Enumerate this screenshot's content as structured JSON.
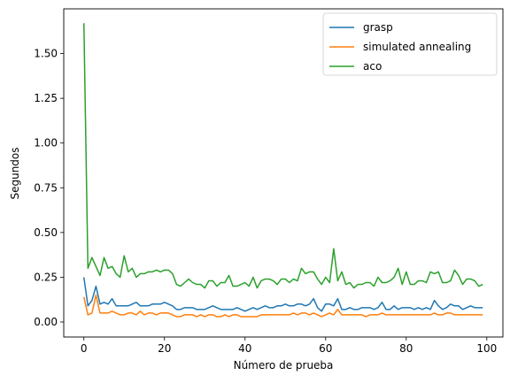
{
  "chart_data": {
    "type": "line",
    "title": "",
    "xlabel": "Número de prueba",
    "ylabel": "Segundos",
    "xlim": [
      -5,
      104
    ],
    "ylim": [
      -0.084,
      1.75
    ],
    "xticks": [
      0,
      20,
      40,
      60,
      80,
      100
    ],
    "xtick_labels": [
      "0",
      "20",
      "40",
      "60",
      "80",
      "100"
    ],
    "yticks": [
      0.0,
      0.25,
      0.5,
      0.75,
      1.0,
      1.25,
      1.5
    ],
    "ytick_labels": [
      "0.00",
      "0.25",
      "0.50",
      "0.75",
      "1.00",
      "1.25",
      "1.50"
    ],
    "grid": false,
    "legend_position": "top-right",
    "x": [
      0,
      1,
      2,
      3,
      4,
      5,
      6,
      7,
      8,
      9,
      10,
      11,
      12,
      13,
      14,
      15,
      16,
      17,
      18,
      19,
      20,
      21,
      22,
      23,
      24,
      25,
      26,
      27,
      28,
      29,
      30,
      31,
      32,
      33,
      34,
      35,
      36,
      37,
      38,
      39,
      40,
      41,
      42,
      43,
      44,
      45,
      46,
      47,
      48,
      49,
      50,
      51,
      52,
      53,
      54,
      55,
      56,
      57,
      58,
      59,
      60,
      61,
      62,
      63,
      64,
      65,
      66,
      67,
      68,
      69,
      70,
      71,
      72,
      73,
      74,
      75,
      76,
      77,
      78,
      79,
      80,
      81,
      82,
      83,
      84,
      85,
      86,
      87,
      88,
      89,
      90,
      91,
      92,
      93,
      94,
      95,
      96,
      97,
      98,
      99
    ],
    "series": [
      {
        "name": "grasp",
        "color": "#1f77b4",
        "values": [
          0.25,
          0.09,
          0.12,
          0.2,
          0.1,
          0.11,
          0.1,
          0.13,
          0.09,
          0.09,
          0.09,
          0.09,
          0.1,
          0.11,
          0.09,
          0.09,
          0.09,
          0.1,
          0.1,
          0.1,
          0.11,
          0.1,
          0.09,
          0.07,
          0.07,
          0.08,
          0.08,
          0.08,
          0.07,
          0.07,
          0.07,
          0.08,
          0.09,
          0.08,
          0.07,
          0.07,
          0.07,
          0.07,
          0.08,
          0.07,
          0.06,
          0.07,
          0.08,
          0.07,
          0.08,
          0.09,
          0.08,
          0.08,
          0.09,
          0.09,
          0.1,
          0.09,
          0.09,
          0.1,
          0.1,
          0.09,
          0.1,
          0.13,
          0.08,
          0.06,
          0.1,
          0.1,
          0.09,
          0.13,
          0.07,
          0.07,
          0.08,
          0.07,
          0.07,
          0.08,
          0.08,
          0.08,
          0.07,
          0.08,
          0.11,
          0.07,
          0.07,
          0.09,
          0.07,
          0.08,
          0.08,
          0.08,
          0.07,
          0.08,
          0.07,
          0.08,
          0.07,
          0.12,
          0.09,
          0.07,
          0.08,
          0.1,
          0.09,
          0.09,
          0.07,
          0.08,
          0.09,
          0.08,
          0.08,
          0.08
        ]
      },
      {
        "name": "simulated annealing",
        "color": "#ff7f0e",
        "values": [
          0.14,
          0.04,
          0.05,
          0.15,
          0.05,
          0.05,
          0.05,
          0.06,
          0.05,
          0.04,
          0.04,
          0.05,
          0.05,
          0.04,
          0.06,
          0.04,
          0.05,
          0.05,
          0.04,
          0.05,
          0.05,
          0.05,
          0.04,
          0.03,
          0.03,
          0.04,
          0.04,
          0.04,
          0.03,
          0.04,
          0.03,
          0.04,
          0.04,
          0.03,
          0.03,
          0.04,
          0.03,
          0.04,
          0.04,
          0.03,
          0.03,
          0.03,
          0.03,
          0.03,
          0.04,
          0.04,
          0.04,
          0.04,
          0.04,
          0.04,
          0.04,
          0.04,
          0.05,
          0.04,
          0.05,
          0.05,
          0.04,
          0.05,
          0.04,
          0.03,
          0.04,
          0.05,
          0.04,
          0.07,
          0.04,
          0.04,
          0.04,
          0.04,
          0.04,
          0.04,
          0.03,
          0.04,
          0.04,
          0.04,
          0.05,
          0.04,
          0.04,
          0.04,
          0.04,
          0.04,
          0.04,
          0.04,
          0.04,
          0.04,
          0.04,
          0.04,
          0.04,
          0.05,
          0.04,
          0.04,
          0.05,
          0.05,
          0.04,
          0.04,
          0.04,
          0.04,
          0.04,
          0.04,
          0.04,
          0.04
        ]
      },
      {
        "name": "aco",
        "color": "#2ca02c",
        "values": [
          1.67,
          0.3,
          0.36,
          0.31,
          0.26,
          0.36,
          0.3,
          0.31,
          0.27,
          0.25,
          0.37,
          0.28,
          0.3,
          0.25,
          0.27,
          0.27,
          0.28,
          0.28,
          0.29,
          0.28,
          0.29,
          0.29,
          0.27,
          0.21,
          0.2,
          0.22,
          0.24,
          0.22,
          0.21,
          0.21,
          0.19,
          0.23,
          0.23,
          0.2,
          0.22,
          0.22,
          0.26,
          0.2,
          0.2,
          0.21,
          0.22,
          0.2,
          0.25,
          0.19,
          0.23,
          0.24,
          0.24,
          0.23,
          0.21,
          0.24,
          0.24,
          0.22,
          0.24,
          0.23,
          0.3,
          0.27,
          0.28,
          0.28,
          0.24,
          0.21,
          0.25,
          0.22,
          0.41,
          0.23,
          0.28,
          0.21,
          0.22,
          0.19,
          0.21,
          0.21,
          0.22,
          0.22,
          0.2,
          0.25,
          0.22,
          0.22,
          0.23,
          0.25,
          0.3,
          0.21,
          0.28,
          0.21,
          0.21,
          0.23,
          0.23,
          0.22,
          0.28,
          0.27,
          0.28,
          0.22,
          0.22,
          0.23,
          0.29,
          0.26,
          0.21,
          0.24,
          0.24,
          0.23,
          0.2,
          0.21
        ]
      }
    ]
  }
}
